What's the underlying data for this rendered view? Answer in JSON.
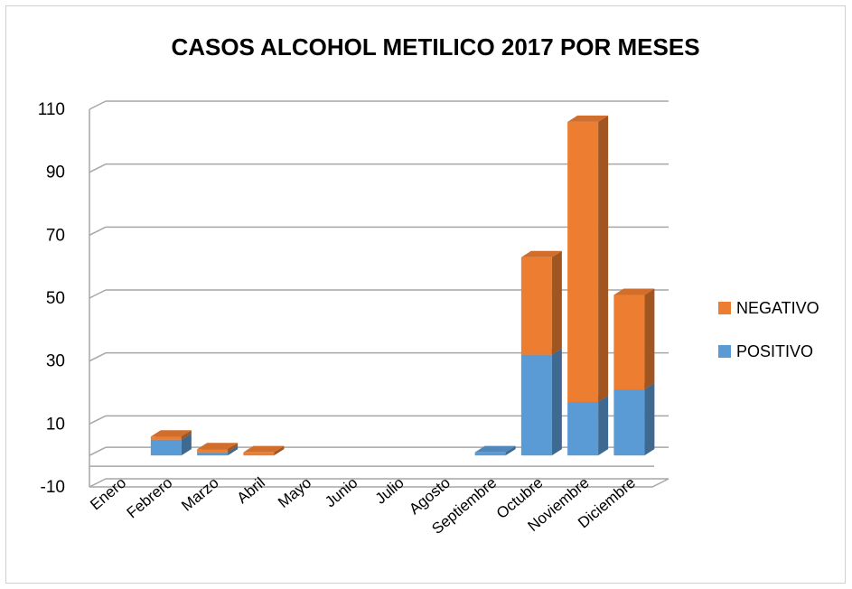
{
  "chart_data": {
    "type": "bar",
    "stacked": true,
    "three_d": true,
    "title": "CASOS ALCOHOL METILICO 2017 POR MESES",
    "categories": [
      "Enero",
      "Febrero",
      "Marzo",
      "Abril",
      "Mayo",
      "Junio",
      "Julio",
      "Agosto",
      "Septiembre",
      "Octubre",
      "Noviembre",
      "Diciembre"
    ],
    "series": [
      {
        "name": "POSITIVO",
        "color": "#5b9bd5",
        "values": [
          0,
          5,
          1,
          0,
          0,
          0,
          0,
          0,
          1,
          32,
          17,
          21
        ]
      },
      {
        "name": "NEGATIVO",
        "color": "#ed7d31",
        "values": [
          0,
          1,
          1,
          1,
          0,
          0,
          0,
          0,
          0,
          31,
          89,
          30
        ]
      }
    ],
    "ylim": [
      -10,
      110
    ],
    "yticks": [
      "110",
      "90",
      "70",
      "50",
      "30",
      "10",
      "-10"
    ],
    "ytick_values": [
      110,
      90,
      70,
      50,
      30,
      10,
      -10
    ],
    "grid": true,
    "legend_position": "right"
  }
}
